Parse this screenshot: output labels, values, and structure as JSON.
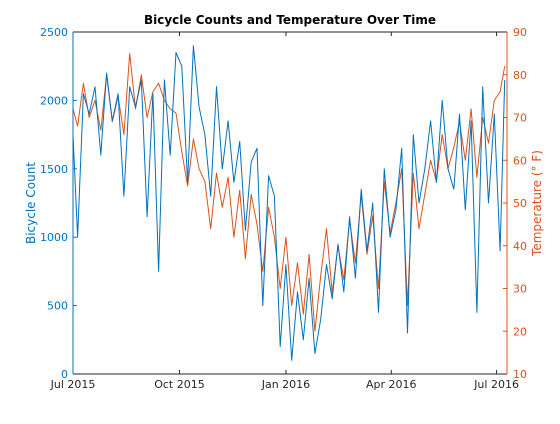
{
  "chart_data": {
    "type": "line",
    "title": "Bicycle Counts and Temperature Over Time",
    "xlabel": "",
    "x_range": [
      "2015-07-01",
      "2016-07-10"
    ],
    "x_ticks": [
      {
        "date": "2015-07-01",
        "label": "Jul 2015"
      },
      {
        "date": "2015-10-01",
        "label": "Oct 2015"
      },
      {
        "date": "2016-01-01",
        "label": "Jan 2016"
      },
      {
        "date": "2016-04-01",
        "label": "Apr 2016"
      },
      {
        "date": "2016-07-01",
        "label": "Jul 2016"
      }
    ],
    "y_left": {
      "label": "Bicycle Count",
      "lim": [
        0,
        2500
      ],
      "ticks": [
        0,
        500,
        1000,
        1500,
        2000,
        2500
      ],
      "color": "#0072BD"
    },
    "y_right": {
      "label": "Temperature (° F)",
      "lim": [
        10,
        90
      ],
      "ticks": [
        10,
        20,
        30,
        40,
        50,
        60,
        70,
        80,
        90
      ],
      "color": "#D95319"
    },
    "grid": false,
    "series": [
      {
        "name": "",
        "axis": "left",
        "color": "#0072BD",
        "x": [
          "2015-07-01",
          "2015-07-05",
          "2015-07-10",
          "2015-07-15",
          "2015-07-20",
          "2015-07-25",
          "2015-07-30",
          "2015-08-04",
          "2015-08-09",
          "2015-08-14",
          "2015-08-19",
          "2015-08-24",
          "2015-08-29",
          "2015-09-03",
          "2015-09-08",
          "2015-09-13",
          "2015-09-18",
          "2015-09-23",
          "2015-09-28",
          "2015-10-03",
          "2015-10-08",
          "2015-10-13",
          "2015-10-18",
          "2015-10-23",
          "2015-10-28",
          "2015-11-02",
          "2015-11-07",
          "2015-11-12",
          "2015-11-17",
          "2015-11-22",
          "2015-11-27",
          "2015-12-02",
          "2015-12-07",
          "2015-12-12",
          "2015-12-17",
          "2015-12-22",
          "2015-12-27",
          "2016-01-01",
          "2016-01-06",
          "2016-01-11",
          "2016-01-16",
          "2016-01-21",
          "2016-01-26",
          "2016-01-31",
          "2016-02-05",
          "2016-02-10",
          "2016-02-15",
          "2016-02-20",
          "2016-02-25",
          "2016-03-01",
          "2016-03-06",
          "2016-03-11",
          "2016-03-16",
          "2016-03-21",
          "2016-03-26",
          "2016-03-31",
          "2016-04-05",
          "2016-04-10",
          "2016-04-15",
          "2016-04-20",
          "2016-04-25",
          "2016-04-30",
          "2016-05-05",
          "2016-05-10",
          "2016-05-15",
          "2016-05-20",
          "2016-05-25",
          "2016-05-30",
          "2016-06-04",
          "2016-06-09",
          "2016-06-14",
          "2016-06-19",
          "2016-06-24",
          "2016-06-29",
          "2016-07-04",
          "2016-07-08"
        ],
        "values": [
          1750,
          1000,
          2050,
          1900,
          2100,
          1600,
          2200,
          1850,
          2050,
          1300,
          2100,
          1950,
          2150,
          1150,
          2050,
          750,
          2150,
          1600,
          2350,
          2250,
          1400,
          2400,
          1950,
          1750,
          1300,
          2100,
          1500,
          1850,
          1400,
          1700,
          1050,
          1550,
          1650,
          500,
          1450,
          1300,
          200,
          800,
          100,
          600,
          250,
          700,
          150,
          400,
          800,
          550,
          950,
          600,
          1150,
          700,
          1350,
          900,
          1250,
          450,
          1500,
          1000,
          1200,
          1650,
          300,
          1750,
          1250,
          1500,
          1850,
          1400,
          2000,
          1500,
          1350,
          1900,
          1200,
          1850,
          450,
          2100,
          1250,
          1900,
          900,
          2150
        ]
      },
      {
        "name": "",
        "axis": "right",
        "color": "#D95319",
        "x": [
          "2015-07-01",
          "2015-07-05",
          "2015-07-10",
          "2015-07-15",
          "2015-07-20",
          "2015-07-25",
          "2015-07-30",
          "2015-08-04",
          "2015-08-09",
          "2015-08-14",
          "2015-08-19",
          "2015-08-24",
          "2015-08-29",
          "2015-09-03",
          "2015-09-08",
          "2015-09-13",
          "2015-09-18",
          "2015-09-23",
          "2015-09-28",
          "2015-10-03",
          "2015-10-08",
          "2015-10-13",
          "2015-10-18",
          "2015-10-23",
          "2015-10-28",
          "2015-11-02",
          "2015-11-07",
          "2015-11-12",
          "2015-11-17",
          "2015-11-22",
          "2015-11-27",
          "2015-12-02",
          "2015-12-07",
          "2015-12-12",
          "2015-12-17",
          "2015-12-22",
          "2015-12-27",
          "2016-01-01",
          "2016-01-06",
          "2016-01-11",
          "2016-01-16",
          "2016-01-21",
          "2016-01-26",
          "2016-01-31",
          "2016-02-05",
          "2016-02-10",
          "2016-02-15",
          "2016-02-20",
          "2016-02-25",
          "2016-03-01",
          "2016-03-06",
          "2016-03-11",
          "2016-03-16",
          "2016-03-21",
          "2016-03-26",
          "2016-03-31",
          "2016-04-05",
          "2016-04-10",
          "2016-04-15",
          "2016-04-20",
          "2016-04-25",
          "2016-04-30",
          "2016-05-05",
          "2016-05-10",
          "2016-05-15",
          "2016-05-20",
          "2016-05-25",
          "2016-05-30",
          "2016-06-04",
          "2016-06-09",
          "2016-06-14",
          "2016-06-19",
          "2016-06-24",
          "2016-06-29",
          "2016-07-04",
          "2016-07-08"
        ],
        "values": [
          72,
          68,
          78,
          70,
          74,
          67,
          80,
          69,
          75,
          66,
          85,
          72,
          80,
          70,
          76,
          78,
          74,
          72,
          71,
          62,
          54,
          65,
          58,
          55,
          44,
          57,
          49,
          56,
          42,
          53,
          37,
          52,
          45,
          34,
          49,
          42,
          30,
          42,
          26,
          36,
          24,
          38,
          20,
          33,
          44,
          29,
          40,
          32,
          46,
          36,
          52,
          38,
          47,
          30,
          55,
          43,
          50,
          58,
          26,
          57,
          44,
          52,
          60,
          55,
          66,
          58,
          63,
          69,
          60,
          72,
          56,
          70,
          64,
          74,
          76,
          82
        ]
      }
    ]
  }
}
